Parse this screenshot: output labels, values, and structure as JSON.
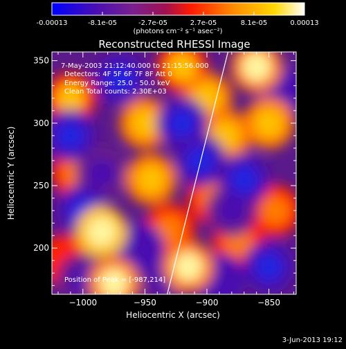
{
  "colorbar": {
    "ticks": [
      "-0.00013",
      "-8.1e-05",
      "-2.7e-05",
      "2.7e-05",
      "8.1e-05",
      "0.00013"
    ],
    "unit_label": "(photons cm⁻² s⁻¹ asec⁻²)"
  },
  "chart_data": {
    "type": "heatmap",
    "title": "Reconstructed RHESSI Image",
    "xlabel": "Heliocentric X (arcsec)",
    "ylabel": "Heliocentric Y (arcsec)",
    "xlim": [
      -1025,
      -828
    ],
    "ylim": [
      163,
      357
    ],
    "xticks": [
      -1000,
      -950,
      -900,
      -850
    ],
    "xtick_labels": [
      "−1000",
      "−950",
      "−900",
      "−850"
    ],
    "yticks": [
      200,
      250,
      300,
      350
    ],
    "ytick_labels": [
      "200",
      "250",
      "300",
      "350"
    ],
    "value_range": [
      -0.00013,
      0.00013
    ],
    "colormap": [
      "#0000ff",
      "#5a1a9a",
      "#7a2090",
      "#b01040",
      "#ff1a00",
      "#ff8c00",
      "#ffd700",
      "#ffffff"
    ],
    "limb_line": [
      [
        -932,
        163
      ],
      [
        -883,
        357
      ]
    ],
    "annotations": [
      "7-May-2003 21:12:40.000 to 21:15:56.000",
      "Detectors: 4F 5F 6F 7F 8F  Att 0",
      "Energy Range: 25.0 - 50.0 keV",
      "Clean     Total counts: 2.30E+03"
    ],
    "position_note": "Position of Peak = [-987,214]",
    "blobs": [
      {
        "x": -985,
        "y": 213,
        "v": 1.0
      },
      {
        "x": -975,
        "y": 172,
        "v": 0.95
      },
      {
        "x": -915,
        "y": 185,
        "v": 0.85
      },
      {
        "x": -950,
        "y": 300,
        "v": 0.75
      },
      {
        "x": -945,
        "y": 255,
        "v": 0.7
      },
      {
        "x": -1010,
        "y": 320,
        "v": 0.6
      },
      {
        "x": -1005,
        "y": 260,
        "v": 0.55
      },
      {
        "x": -900,
        "y": 320,
        "v": 0.75
      },
      {
        "x": -885,
        "y": 290,
        "v": 0.7
      },
      {
        "x": -850,
        "y": 300,
        "v": 0.7
      },
      {
        "x": -860,
        "y": 345,
        "v": 0.8
      },
      {
        "x": -875,
        "y": 205,
        "v": 0.45
      },
      {
        "x": -895,
        "y": 240,
        "v": 0.5
      },
      {
        "x": -930,
        "y": 215,
        "v": 0.55
      },
      {
        "x": -920,
        "y": 345,
        "v": 0.65
      },
      {
        "x": -1015,
        "y": 190,
        "v": 0.35
      },
      {
        "x": -845,
        "y": 230,
        "v": 0.4
      },
      {
        "x": -1010,
        "y": 290,
        "v": -0.8
      },
      {
        "x": -1000,
        "y": 230,
        "v": -0.7
      },
      {
        "x": -970,
        "y": 335,
        "v": -0.75
      },
      {
        "x": -920,
        "y": 300,
        "v": -0.8
      },
      {
        "x": -955,
        "y": 200,
        "v": -0.6
      },
      {
        "x": -870,
        "y": 255,
        "v": -0.85
      },
      {
        "x": -850,
        "y": 185,
        "v": -0.7
      },
      {
        "x": -890,
        "y": 175,
        "v": -0.6
      },
      {
        "x": -840,
        "y": 325,
        "v": -0.6
      },
      {
        "x": -935,
        "y": 175,
        "v": -0.5
      },
      {
        "x": -985,
        "y": 260,
        "v": -0.55
      },
      {
        "x": -880,
        "y": 230,
        "v": -0.55
      },
      {
        "x": -905,
        "y": 270,
        "v": -0.7
      },
      {
        "x": -1000,
        "y": 175,
        "v": -0.5
      }
    ]
  },
  "footer": {
    "date": "3-Jun-2013 19:12"
  }
}
